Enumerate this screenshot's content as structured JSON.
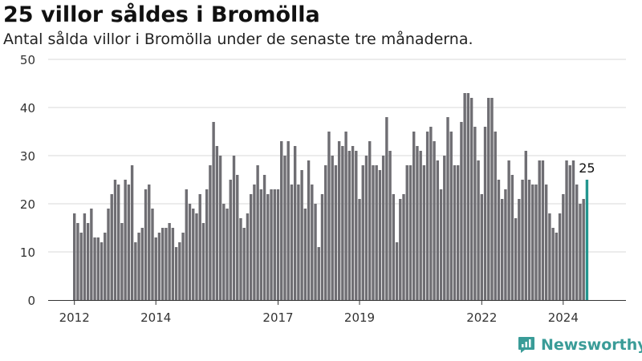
{
  "header": {
    "title": "25 villor såldes i Bromölla",
    "subtitle": "Antal sålda villor i Bromölla under de senaste tre månaderna."
  },
  "brand": {
    "name": "Newsworthy",
    "icon": "chart-logo-icon"
  },
  "colors": {
    "bar": "#6f6e73",
    "highlight": "#23968f",
    "grid": "#d9d9d9",
    "axis": "#333333",
    "brand": "#3a9c98"
  },
  "chart_data": {
    "type": "bar",
    "title": "25 villor såldes i Bromölla",
    "subtitle": "Antal sålda villor i Bromölla under de senaste tre månaderna.",
    "xlabel": "",
    "ylabel": "",
    "ylim": [
      0,
      50
    ],
    "yticks": [
      0,
      10,
      20,
      30,
      40,
      50
    ],
    "xticks": [
      "2012",
      "2014",
      "2017",
      "2019",
      "2022",
      "2024"
    ],
    "grid": true,
    "highlight_label": "25",
    "values": [
      18,
      16,
      14,
      18,
      16,
      19,
      13,
      13,
      12,
      14,
      19,
      22,
      25,
      24,
      16,
      25,
      24,
      28,
      12,
      14,
      15,
      23,
      24,
      19,
      13,
      14,
      15,
      15,
      16,
      15,
      11,
      12,
      14,
      23,
      20,
      19,
      18,
      22,
      16,
      23,
      28,
      37,
      32,
      30,
      20,
      19,
      25,
      30,
      26,
      17,
      15,
      18,
      22,
      24,
      28,
      23,
      26,
      22,
      23,
      23,
      23,
      33,
      30,
      33,
      24,
      32,
      24,
      27,
      19,
      29,
      24,
      20,
      11,
      22,
      28,
      35,
      30,
      28,
      33,
      32,
      35,
      31,
      32,
      31,
      21,
      28,
      30,
      33,
      28,
      28,
      27,
      30,
      38,
      31,
      22,
      12,
      21,
      22,
      28,
      28,
      35,
      32,
      31,
      28,
      35,
      36,
      33,
      29,
      23,
      30,
      38,
      35,
      28,
      28,
      37,
      43,
      43,
      42,
      36,
      29,
      22,
      36,
      42,
      42,
      35,
      25,
      21,
      23,
      29,
      26,
      17,
      21,
      25,
      31,
      25,
      24,
      24,
      29,
      29,
      24,
      18,
      15,
      14,
      18,
      22,
      29,
      28,
      29,
      24,
      20,
      21,
      25
    ]
  }
}
